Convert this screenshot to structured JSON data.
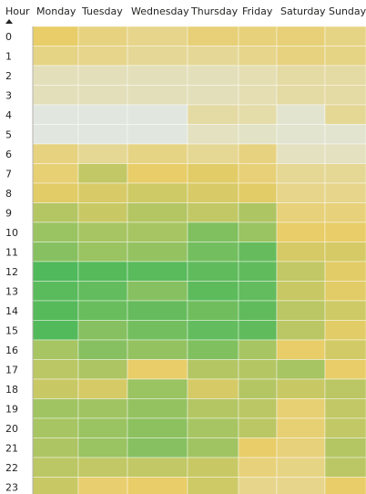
{
  "chart_data": {
    "type": "heatmap",
    "row_header": "Hour",
    "sort_indicator_icon": "sort-ascending-triangle-icon",
    "columns": [
      "Monday",
      "Tuesday",
      "Wednesday",
      "Thursday",
      "Friday",
      "Saturday",
      "Sunday"
    ],
    "rows": [
      "0",
      "1",
      "2",
      "3",
      "4",
      "5",
      "6",
      "7",
      "8",
      "9",
      "10",
      "11",
      "12",
      "13",
      "14",
      "15",
      "16",
      "17",
      "18",
      "19",
      "20",
      "21",
      "22",
      "23"
    ],
    "color_scale": {
      "low": "#dfeefb",
      "mid": "#e8cd68",
      "high": "#46b85a"
    },
    "intensity": [
      [
        0.5,
        0.42,
        0.38,
        0.45,
        0.44,
        0.45,
        0.4
      ],
      [
        0.4,
        0.38,
        0.34,
        0.34,
        0.38,
        0.42,
        0.4
      ],
      [
        0.22,
        0.22,
        0.22,
        0.22,
        0.25,
        0.3,
        0.3
      ],
      [
        0.22,
        0.22,
        0.22,
        0.22,
        0.25,
        0.3,
        0.3
      ],
      [
        0.1,
        0.1,
        0.1,
        0.3,
        0.28,
        0.15,
        0.35
      ],
      [
        0.1,
        0.1,
        0.1,
        0.2,
        0.18,
        0.15,
        0.15
      ],
      [
        0.42,
        0.35,
        0.4,
        0.35,
        0.42,
        0.2,
        0.2
      ],
      [
        0.46,
        0.62,
        0.5,
        0.52,
        0.45,
        0.35,
        0.35
      ],
      [
        0.52,
        0.55,
        0.58,
        0.55,
        0.52,
        0.38,
        0.38
      ],
      [
        0.66,
        0.6,
        0.66,
        0.62,
        0.68,
        0.44,
        0.44
      ],
      [
        0.74,
        0.7,
        0.7,
        0.82,
        0.74,
        0.5,
        0.5
      ],
      [
        0.8,
        0.74,
        0.76,
        0.86,
        0.9,
        0.56,
        0.56
      ],
      [
        0.97,
        0.95,
        0.94,
        0.92,
        0.92,
        0.62,
        0.52
      ],
      [
        0.94,
        0.91,
        0.8,
        0.93,
        0.91,
        0.6,
        0.52
      ],
      [
        0.95,
        0.89,
        0.9,
        0.87,
        0.92,
        0.64,
        0.58
      ],
      [
        0.96,
        0.8,
        0.86,
        0.91,
        0.92,
        0.64,
        0.52
      ],
      [
        0.7,
        0.8,
        0.76,
        0.82,
        0.7,
        0.5,
        0.57
      ],
      [
        0.64,
        0.68,
        0.5,
        0.66,
        0.66,
        0.7,
        0.5
      ],
      [
        0.6,
        0.56,
        0.74,
        0.56,
        0.66,
        0.6,
        0.64
      ],
      [
        0.72,
        0.72,
        0.76,
        0.66,
        0.64,
        0.46,
        0.62
      ],
      [
        0.7,
        0.74,
        0.78,
        0.7,
        0.64,
        0.46,
        0.62
      ],
      [
        0.68,
        0.74,
        0.8,
        0.72,
        0.5,
        0.44,
        0.66
      ],
      [
        0.64,
        0.62,
        0.62,
        0.6,
        0.44,
        0.4,
        0.64
      ],
      [
        0.6,
        0.48,
        0.5,
        0.58,
        0.38,
        0.38,
        0.5
      ]
    ]
  }
}
